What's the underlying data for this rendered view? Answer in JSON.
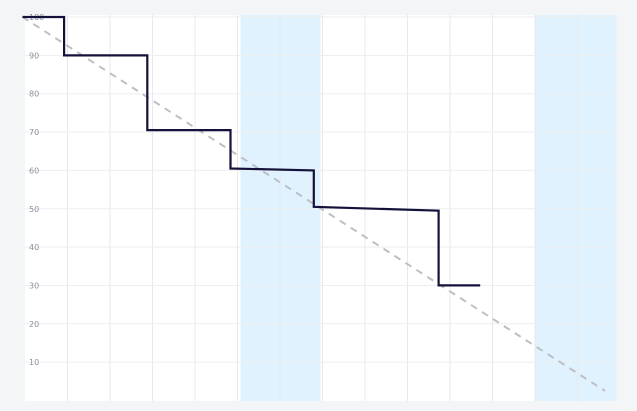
{
  "chart_data": {
    "type": "line",
    "y_ticks": [
      "10",
      "20",
      "30",
      "40",
      "50",
      "60",
      "70",
      "80",
      "90",
      "100"
    ],
    "ylim": [
      0,
      100
    ],
    "x_steps": 14,
    "grid": true,
    "highlight_bands": [
      [
        5,
        7
      ],
      [
        12,
        14
      ]
    ],
    "series": [
      {
        "style": "step",
        "color": "#14123a",
        "points": [
          [
            0,
            100
          ],
          [
            1,
            100
          ],
          [
            1,
            90
          ],
          [
            3,
            90
          ],
          [
            3,
            70.5
          ],
          [
            5,
            70.5
          ],
          [
            5,
            60.5
          ],
          [
            7,
            60
          ],
          [
            7,
            50.5
          ],
          [
            10,
            49.5
          ],
          [
            10,
            30
          ],
          [
            11,
            30
          ]
        ]
      },
      {
        "style": "dashed",
        "color": "#bdbfc4",
        "points": [
          [
            0,
            100
          ],
          [
            14,
            2.5
          ]
        ]
      }
    ]
  }
}
